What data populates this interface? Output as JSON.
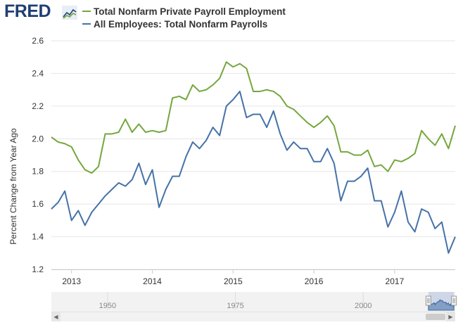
{
  "header": {
    "logo_text": "FRED",
    "logo_icon": "fred-chart-icon",
    "legend": [
      {
        "label": "Total Nonfarm Private Payroll Employment",
        "color": "#75a73e"
      },
      {
        "label": "All Employees: Total Nonfarm Payrolls",
        "color": "#4572a7"
      }
    ]
  },
  "navigator": {
    "tick_labels": [
      "1950",
      "1975",
      "2000"
    ],
    "selection_range": [
      "2012-10",
      "2017-10"
    ]
  },
  "chart_data": {
    "type": "line",
    "title": "",
    "xlabel": "",
    "ylabel": "Percent Change from Year Ago",
    "x_ticks": [
      "2013",
      "2014",
      "2015",
      "2016",
      "2017"
    ],
    "y_ticks": [
      "1.2",
      "1.4",
      "1.6",
      "1.8",
      "2.0",
      "2.2",
      "2.4",
      "2.6"
    ],
    "ylim": [
      1.2,
      2.6
    ],
    "xlim": [
      "2012-10",
      "2017-10"
    ],
    "grid": "horizontal",
    "legend_position": "top-left",
    "x_start": "2012-10",
    "x_step": "1 month",
    "series": [
      {
        "name": "Total Nonfarm Private Payroll Employment",
        "color": "#75a73e",
        "values": [
          2.01,
          1.98,
          1.97,
          1.95,
          1.87,
          1.81,
          1.79,
          1.83,
          2.03,
          2.03,
          2.04,
          2.12,
          2.04,
          2.09,
          2.04,
          2.05,
          2.04,
          2.05,
          2.25,
          2.26,
          2.24,
          2.33,
          2.29,
          2.3,
          2.33,
          2.37,
          2.47,
          2.44,
          2.46,
          2.43,
          2.29,
          2.29,
          2.3,
          2.29,
          2.26,
          2.2,
          2.18,
          2.14,
          2.1,
          2.07,
          2.1,
          2.14,
          2.08,
          1.92,
          1.92,
          1.9,
          1.9,
          1.93,
          1.83,
          1.84,
          1.8,
          1.87,
          1.86,
          1.88,
          1.91,
          2.05,
          2.0,
          1.96,
          2.03,
          1.94,
          2.08
        ]
      },
      {
        "name": "All Employees: Total Nonfarm Payrolls",
        "color": "#4572a7",
        "values": [
          1.57,
          1.61,
          1.68,
          1.5,
          1.56,
          1.47,
          1.55,
          1.6,
          1.65,
          1.69,
          1.73,
          1.71,
          1.75,
          1.85,
          1.72,
          1.81,
          1.58,
          1.69,
          1.77,
          1.77,
          1.89,
          1.98,
          1.94,
          1.99,
          2.07,
          2.02,
          2.2,
          2.24,
          2.29,
          2.13,
          2.15,
          2.15,
          2.07,
          2.17,
          2.03,
          1.93,
          1.98,
          1.94,
          1.94,
          1.86,
          1.86,
          1.94,
          1.85,
          1.62,
          1.74,
          1.74,
          1.77,
          1.82,
          1.62,
          1.62,
          1.46,
          1.55,
          1.68,
          1.49,
          1.43,
          1.57,
          1.55,
          1.45,
          1.49,
          1.3,
          1.4
        ]
      }
    ]
  }
}
